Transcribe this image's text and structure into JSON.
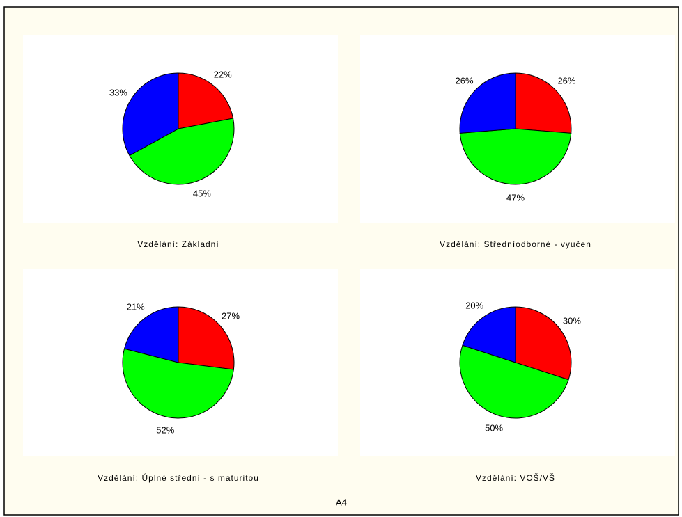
{
  "chart_data": [
    {
      "type": "pie",
      "title": "Vzdělání: Základní",
      "values": [
        22,
        45,
        33
      ],
      "value_labels": [
        "22%",
        "45%",
        "33%"
      ],
      "colors": [
        "#ff0000",
        "#00ff00",
        "#0000ff"
      ]
    },
    {
      "type": "pie",
      "title": "Vzdělání: Středníodborné - vyučen",
      "values": [
        26,
        47,
        26
      ],
      "value_labels": [
        "26%",
        "47%",
        "26%"
      ],
      "colors": [
        "#ff0000",
        "#00ff00",
        "#0000ff"
      ]
    },
    {
      "type": "pie",
      "title": "Vzdělání: Úplné střední - s maturitou",
      "values": [
        27,
        52,
        21
      ],
      "value_labels": [
        "27%",
        "52%",
        "21%"
      ],
      "colors": [
        "#ff0000",
        "#00ff00",
        "#0000ff"
      ]
    },
    {
      "type": "pie",
      "title": "Vzdělání: VOŠ/VŠ",
      "values": [
        30,
        50,
        20
      ],
      "value_labels": [
        "30%",
        "50%",
        "20%"
      ],
      "colors": [
        "#ff0000",
        "#00ff00",
        "#0000ff"
      ]
    }
  ],
  "footer": "A4"
}
